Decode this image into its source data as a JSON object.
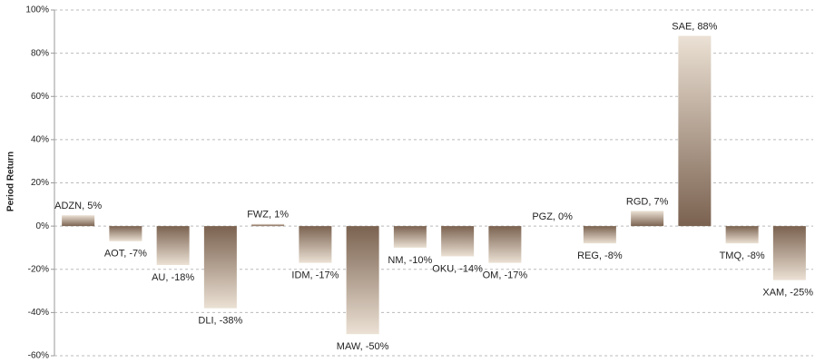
{
  "chart_data": {
    "type": "bar",
    "y_label": "Period Return",
    "categories": [
      "ADZN",
      "AOT",
      "AU",
      "DLI",
      "FWZ",
      "IDM",
      "MAW",
      "NM",
      "OKU",
      "OM",
      "PGZ",
      "REG",
      "RGD",
      "SAE",
      "TMQ",
      "XAM"
    ],
    "values": [
      5,
      -7,
      -18,
      -38,
      1,
      -17,
      -50,
      -10,
      -14,
      -17,
      0,
      -8,
      7,
      88,
      -8,
      -25
    ],
    "value_labels": [
      "ADZN, 5%",
      "AOT, -7%",
      "AU, -18%",
      "DLI, -38%",
      "FWZ, 1%",
      "IDM, -17%",
      "MAW, -50%",
      "NM, -10%",
      "OKU, -14%",
      "OM, -17%",
      "PGZ, 0%",
      "REG, -8%",
      "RGD, 7%",
      "SAE, 88%",
      "TMQ, -8%",
      "XAM, -25%"
    ],
    "ylim": [
      -60,
      100
    ],
    "yticks": [
      {
        "value": -60,
        "label": "-60%"
      },
      {
        "value": -40,
        "label": "-40%"
      },
      {
        "value": -20,
        "label": "-20%"
      },
      {
        "value": 0,
        "label": "0%"
      },
      {
        "value": 20,
        "label": "20%"
      },
      {
        "value": 40,
        "label": "40%"
      },
      {
        "value": 60,
        "label": "60%"
      },
      {
        "value": 80,
        "label": "80%"
      },
      {
        "value": 100,
        "label": "100%"
      }
    ],
    "grid": true,
    "gradient": {
      "dark": "#7b6250",
      "light": "#ebe1d4"
    }
  }
}
